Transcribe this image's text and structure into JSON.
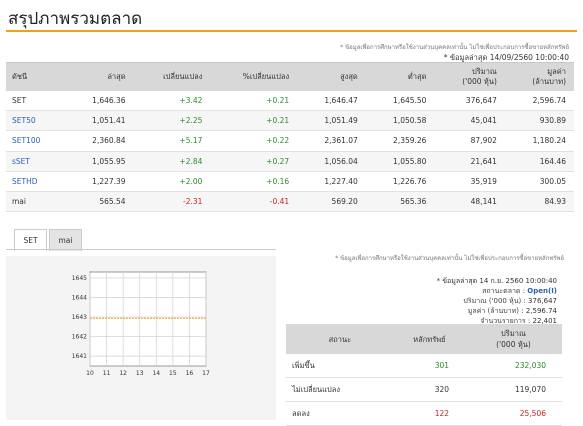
{
  "page": {
    "title": "สรุปภาพรวมตลาด"
  },
  "top": {
    "note": "* ข้อมูลเพื่อการศึกษาหรือใช้งานส่วนบุคคลเท่านั้น ไม่ใช่เพื่อประกอบการซื้อขายหลักทรัพย์",
    "update": "* ข้อมูลล่าสุด 14/09/2560 10:00:40"
  },
  "index_table": {
    "headers": [
      "ดัชนี",
      "ล่าสุด",
      "เปลี่ยนแปลง",
      "%เปลี่ยนแปลง",
      "สูงสุด",
      "ต่ำสุด",
      "ปริมาณ\n('000 หุ้น)",
      "มูลค่า\n(ล้านบาท)"
    ],
    "rows": [
      {
        "name": "SET",
        "last": "1,646.36",
        "change": "+3.42",
        "pct": "+0.21",
        "high": "1,646.47",
        "low": "1,645.50",
        "volume": "376,647",
        "value": "2,596.74"
      },
      {
        "name": "SET50",
        "last": "1,051.41",
        "change": "+2.25",
        "pct": "+0.21",
        "high": "1,051.49",
        "low": "1,050.58",
        "volume": "45,041",
        "value": "930.89"
      },
      {
        "name": "SET100",
        "last": "2,360.84",
        "change": "+5.17",
        "pct": "+0.22",
        "high": "2,361.07",
        "low": "2,359.26",
        "volume": "87,902",
        "value": "1,180.24"
      },
      {
        "name": "sSET",
        "last": "1,055.95",
        "change": "+2.84",
        "pct": "+0.27",
        "high": "1,056.04",
        "low": "1,055.80",
        "volume": "21,641",
        "value": "164.46"
      },
      {
        "name": "SETHD",
        "last": "1,227.39",
        "change": "+2.00",
        "pct": "+0.16",
        "high": "1,227.40",
        "low": "1,226.76",
        "volume": "35,919",
        "value": "300.05"
      },
      {
        "name": "mai",
        "last": "565.54",
        "change": "-2.31",
        "pct": "-0.41",
        "high": "569.20",
        "low": "565.36",
        "volume": "48,141",
        "value": "84.93"
      }
    ]
  },
  "tabs": [
    {
      "label": "SET",
      "active": true
    },
    {
      "label": "mai",
      "active": false
    }
  ],
  "chart_data": {
    "type": "line",
    "title": "",
    "xlabel": "",
    "ylabel": "",
    "x_ticks": [
      "10",
      "11",
      "12",
      "13",
      "14",
      "15",
      "16",
      "17"
    ],
    "y_ticks": [
      "1641",
      "1642",
      "1643",
      "1644",
      "1645"
    ],
    "xlim": [
      10,
      17
    ],
    "ylim": [
      1640.5,
      1645.3
    ],
    "reference_line": 1642.94,
    "reference_color": "#f0a020",
    "grid": true,
    "series": [
      {
        "x": [
          10,
          10.03
        ],
        "y": [
          1645.3,
          1645.3
        ]
      }
    ]
  },
  "market_info": {
    "note": "* ข้อมูลเพื่อการศึกษาหรือใช้งานส่วนบุคคลเท่านั้น ไม่ใช่เพื่อประกอบการซื้อขายหลักทรัพย์",
    "update": "* ข้อมูลล่าสุด 14 ก.ย. 2560 10:00:40",
    "status_label": "สถานะตลาด",
    "status_value": "Open(I)",
    "volume_label": "ปริมาณ ('000 หุ้น)",
    "volume_value": "376,647",
    "value_label": "มูลค่า (ล้านบาท)",
    "value_value": "2,596.74",
    "trades_label": "จำนวนรายการ",
    "trades_value": "22,401"
  },
  "advance_table": {
    "headers": [
      "สถานะ",
      "หลักทรัพย์",
      "ปริมาณ\n('000 หุ้น)"
    ],
    "rows": [
      {
        "label": "เพิ่มขึ้น",
        "count": "301",
        "volume": "232,030",
        "tone": "pos"
      },
      {
        "label": "ไม่เปลี่ยนแปลง",
        "count": "320",
        "volume": "119,070",
        "tone": "neutral"
      },
      {
        "label": "ลดลง",
        "count": "122",
        "volume": "25,506",
        "tone": "neg"
      }
    ]
  },
  "colors": {
    "accent": "#f0a020",
    "up": "#2e8b2e",
    "down": "#d02020",
    "link": "#2a62b8"
  }
}
